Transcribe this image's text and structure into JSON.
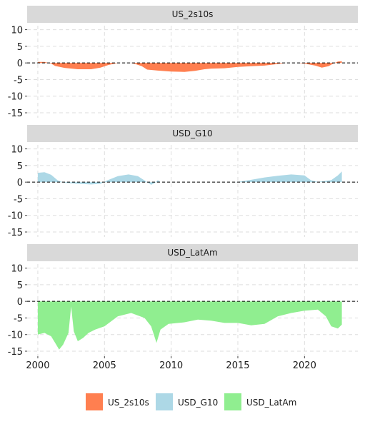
{
  "chart_data": {
    "type": "area",
    "facet_layout": "vertical",
    "x_ticks": [
      2000,
      2005,
      2010,
      2015,
      2020
    ],
    "xlim": [
      1999.2,
      2024.0
    ],
    "y_ticks": [
      10,
      5,
      0,
      -5,
      -10,
      -15
    ],
    "ylim": [
      -16.5,
      11.2
    ],
    "reference_line": {
      "y": 0,
      "style": "dashed",
      "color": "#000000"
    },
    "grid": true,
    "legend_position": "bottom",
    "panels": [
      {
        "label": "US_2s10s",
        "color": "#FF7F50",
        "points": [
          [
            2000.0,
            0.3
          ],
          [
            2000.5,
            0.3
          ],
          [
            2001.0,
            -0.2
          ],
          [
            2001.3,
            -0.9
          ],
          [
            2002.0,
            -1.5
          ],
          [
            2003.0,
            -1.9
          ],
          [
            2004.0,
            -1.9
          ],
          [
            2004.7,
            -1.4
          ],
          [
            2005.3,
            -0.6
          ],
          [
            2006.0,
            0.0
          ],
          [
            2007.0,
            0.0
          ],
          [
            2007.3,
            -0.3
          ],
          [
            2007.8,
            -1.0
          ],
          [
            2008.2,
            -2.0
          ],
          [
            2009.0,
            -2.3
          ],
          [
            2010.0,
            -2.6
          ],
          [
            2011.0,
            -2.7
          ],
          [
            2011.8,
            -2.4
          ],
          [
            2012.5,
            -1.9
          ],
          [
            2013.0,
            -1.7
          ],
          [
            2014.0,
            -1.6
          ],
          [
            2015.0,
            -1.2
          ],
          [
            2016.0,
            -1.0
          ],
          [
            2017.0,
            -0.8
          ],
          [
            2018.0,
            -0.3
          ],
          [
            2018.6,
            0.0
          ],
          [
            2019.5,
            0.0
          ],
          [
            2020.0,
            -0.2
          ],
          [
            2020.8,
            -0.8
          ],
          [
            2021.3,
            -1.4
          ],
          [
            2021.8,
            -1.0
          ],
          [
            2022.2,
            -0.1
          ],
          [
            2022.5,
            0.4
          ],
          [
            2022.8,
            0.5
          ]
        ]
      },
      {
        "label": "USD_G10",
        "color": "#ADD8E6",
        "points": [
          [
            2000.0,
            2.8
          ],
          [
            2000.5,
            3.0
          ],
          [
            2001.0,
            2.2
          ],
          [
            2001.5,
            0.5
          ],
          [
            2002.0,
            -0.2
          ],
          [
            2003.0,
            -0.5
          ],
          [
            2004.0,
            -0.7
          ],
          [
            2004.7,
            -0.5
          ],
          [
            2005.2,
            0.5
          ],
          [
            2006.0,
            1.8
          ],
          [
            2006.8,
            2.3
          ],
          [
            2007.5,
            1.8
          ],
          [
            2008.0,
            0.5
          ],
          [
            2008.5,
            -0.8
          ],
          [
            2008.8,
            -0.2
          ],
          [
            2009.0,
            0.6
          ],
          [
            2009.2,
            0.0
          ],
          [
            2010.0,
            0.0
          ],
          [
            2014.8,
            0.0
          ],
          [
            2015.0,
            0.1
          ],
          [
            2016.0,
            0.7
          ],
          [
            2017.0,
            1.4
          ],
          [
            2018.0,
            1.9
          ],
          [
            2019.0,
            2.3
          ],
          [
            2020.0,
            2.0
          ],
          [
            2020.5,
            0.5
          ],
          [
            2021.0,
            0.1
          ],
          [
            2022.0,
            0.6
          ],
          [
            2022.5,
            2.0
          ],
          [
            2022.8,
            3.2
          ]
        ]
      },
      {
        "label": "USD_LatAm",
        "color": "#90EE90",
        "points": [
          [
            2000.0,
            -10.0
          ],
          [
            2000.5,
            -9.5
          ],
          [
            2001.0,
            -10.5
          ],
          [
            2001.3,
            -12.5
          ],
          [
            2001.6,
            -14.5
          ],
          [
            2001.9,
            -13.0
          ],
          [
            2002.3,
            -9.5
          ],
          [
            2002.5,
            -1.5
          ],
          [
            2002.7,
            -9.0
          ],
          [
            2003.0,
            -12.0
          ],
          [
            2003.4,
            -11.0
          ],
          [
            2003.8,
            -9.5
          ],
          [
            2004.3,
            -8.5
          ],
          [
            2005.0,
            -7.5
          ],
          [
            2006.0,
            -4.5
          ],
          [
            2007.0,
            -3.5
          ],
          [
            2008.0,
            -5.0
          ],
          [
            2008.5,
            -7.5
          ],
          [
            2008.9,
            -12.5
          ],
          [
            2009.2,
            -8.5
          ],
          [
            2009.8,
            -6.8
          ],
          [
            2011.0,
            -6.3
          ],
          [
            2012.0,
            -5.5
          ],
          [
            2013.0,
            -5.8
          ],
          [
            2014.0,
            -6.5
          ],
          [
            2015.0,
            -6.5
          ],
          [
            2016.0,
            -7.2
          ],
          [
            2017.0,
            -6.8
          ],
          [
            2018.0,
            -4.5
          ],
          [
            2019.0,
            -3.5
          ],
          [
            2020.0,
            -2.8
          ],
          [
            2021.0,
            -2.5
          ],
          [
            2021.6,
            -4.5
          ],
          [
            2022.0,
            -7.5
          ],
          [
            2022.5,
            -8.2
          ],
          [
            2022.8,
            -7.0
          ]
        ]
      }
    ],
    "legend": [
      {
        "label": "US_2s10s",
        "color": "#FF7F50"
      },
      {
        "label": "USD_G10",
        "color": "#ADD8E6"
      },
      {
        "label": "USD_LatAm",
        "color": "#90EE90"
      }
    ]
  }
}
